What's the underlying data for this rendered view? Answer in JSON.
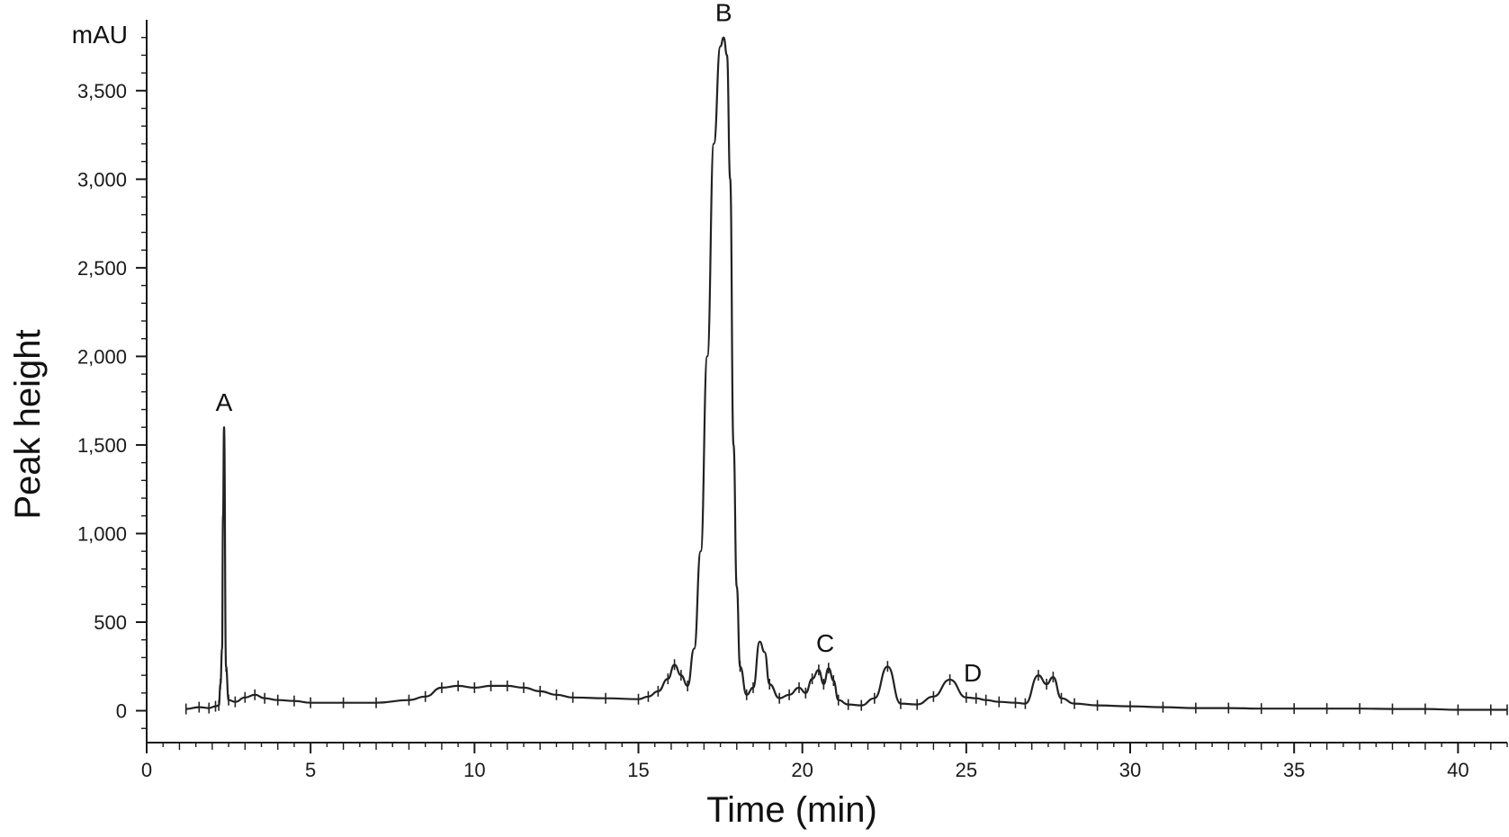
{
  "chart_data": {
    "type": "line",
    "title": "",
    "xlabel": "Time (min)",
    "ylabel": "Peak height",
    "y_unit": "mAU",
    "xlim": [
      0,
      41.5
    ],
    "ylim": [
      -180,
      3900
    ],
    "x_ticks": [
      0,
      5,
      10,
      15,
      20,
      25,
      30,
      35,
      40
    ],
    "x_tick_labels": [
      "0",
      "5",
      "10",
      "15",
      "20",
      "25",
      "30",
      "35",
      "40"
    ],
    "y_ticks": [
      0,
      500,
      1000,
      1500,
      2000,
      2500,
      3000,
      3500
    ],
    "y_tick_labels": [
      "0",
      "500",
      "1,000",
      "1,500",
      "2,000",
      "2,500",
      "3,000",
      "3,500"
    ],
    "grid": false,
    "legend": "none",
    "series": [
      {
        "x": [
          1.2,
          1.6,
          1.9,
          2.1,
          2.2,
          2.25,
          2.3,
          2.33,
          2.36,
          2.42,
          2.5,
          2.7,
          3.0,
          3.3,
          3.6,
          4.0,
          4.5,
          5.0,
          6.0,
          7.0,
          8.0,
          8.5,
          9.0,
          9.5,
          10.0,
          10.5,
          11.0,
          11.5,
          12.0,
          12.5,
          13.0,
          14.0,
          15.0,
          15.3,
          15.6,
          15.9,
          16.1,
          16.3,
          16.5,
          16.7,
          16.9,
          17.1,
          17.3,
          17.5,
          17.6,
          17.7,
          17.8,
          17.9,
          18.0,
          18.1,
          18.3,
          18.5,
          18.7,
          18.85,
          19.0,
          19.3,
          19.6,
          19.9,
          20.1,
          20.3,
          20.5,
          20.65,
          20.8,
          20.95,
          21.1,
          21.4,
          21.8,
          22.2,
          22.6,
          23.0,
          23.5,
          24.0,
          24.5,
          25.0,
          25.3,
          25.6,
          26.0,
          26.5,
          26.8,
          27.2,
          27.45,
          27.65,
          27.9,
          28.3,
          29.0,
          30.0,
          31.0,
          32.0,
          33.0,
          34.0,
          35.0,
          36.0,
          37.0,
          38.0,
          39.0,
          40.0,
          41.0,
          41.5
        ],
        "y": [
          10,
          20,
          15,
          25,
          30,
          150,
          350,
          1100,
          1600,
          250,
          60,
          50,
          75,
          90,
          70,
          60,
          55,
          45,
          45,
          45,
          60,
          80,
          130,
          140,
          130,
          140,
          140,
          130,
          110,
          90,
          75,
          70,
          65,
          80,
          110,
          180,
          260,
          200,
          140,
          350,
          900,
          2000,
          3200,
          3750,
          3800,
          3700,
          3000,
          1500,
          700,
          250,
          90,
          130,
          390,
          330,
          150,
          70,
          90,
          130,
          100,
          180,
          230,
          150,
          240,
          170,
          60,
          35,
          30,
          70,
          250,
          40,
          35,
          80,
          175,
          75,
          70,
          60,
          50,
          45,
          40,
          200,
          150,
          190,
          70,
          40,
          30,
          25,
          20,
          15,
          15,
          12,
          12,
          12,
          12,
          10,
          10,
          5,
          5,
          5
        ]
      }
    ],
    "annotations": [
      {
        "text": "A",
        "x": 2.36,
        "y": 1600
      },
      {
        "text": "B",
        "x": 17.6,
        "y": 3800
      },
      {
        "text": "C",
        "x": 20.7,
        "y": 240
      },
      {
        "text": "D",
        "x": 25.2,
        "y": 75
      }
    ]
  }
}
